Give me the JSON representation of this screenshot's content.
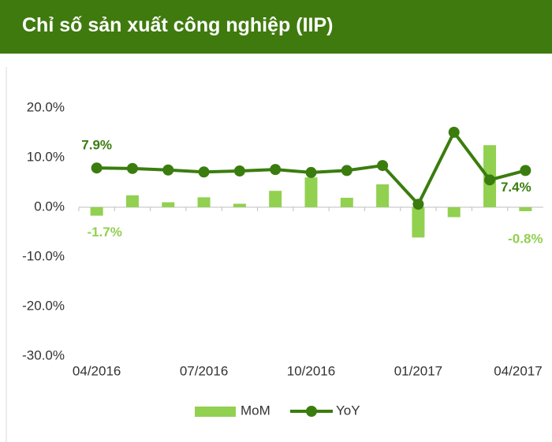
{
  "header": {
    "title": "Chỉ số sản xuất công nghiệp (IIP)"
  },
  "chart_data": {
    "type": "bar_line",
    "categories": [
      "04/2016",
      null,
      null,
      "07/2016",
      null,
      null,
      "10/2016",
      null,
      null,
      "01/2017",
      null,
      null,
      "04/2017"
    ],
    "series": [
      {
        "name": "MoM",
        "type": "bar",
        "color": "#92d050",
        "values": [
          -1.7,
          2.4,
          1.0,
          2.0,
          0.7,
          3.3,
          6.0,
          1.9,
          4.6,
          -6.1,
          -2.0,
          12.5,
          -0.8
        ],
        "value_labels": [
          "-1.7%",
          null,
          null,
          null,
          null,
          null,
          null,
          null,
          null,
          null,
          null,
          null,
          "-0.8%"
        ]
      },
      {
        "name": "YoY",
        "type": "line",
        "color": "#3a7d0e",
        "values": [
          7.9,
          7.8,
          7.5,
          7.1,
          7.3,
          7.6,
          7.0,
          7.4,
          8.4,
          0.6,
          15.1,
          5.5,
          7.4
        ],
        "value_labels": [
          "7.9%",
          null,
          null,
          null,
          null,
          null,
          null,
          null,
          null,
          null,
          null,
          null,
          "7.4%"
        ]
      }
    ],
    "ylim": [
      -30,
      20
    ],
    "yticks": [
      {
        "value": -30,
        "label": "-30.0%"
      },
      {
        "value": -20,
        "label": "-20.0%"
      },
      {
        "value": -10,
        "label": "-10.0%"
      },
      {
        "value": 0,
        "label": "0.0%"
      },
      {
        "value": 10,
        "label": "10.0%"
      },
      {
        "value": 20,
        "label": "20.0%"
      }
    ]
  }
}
